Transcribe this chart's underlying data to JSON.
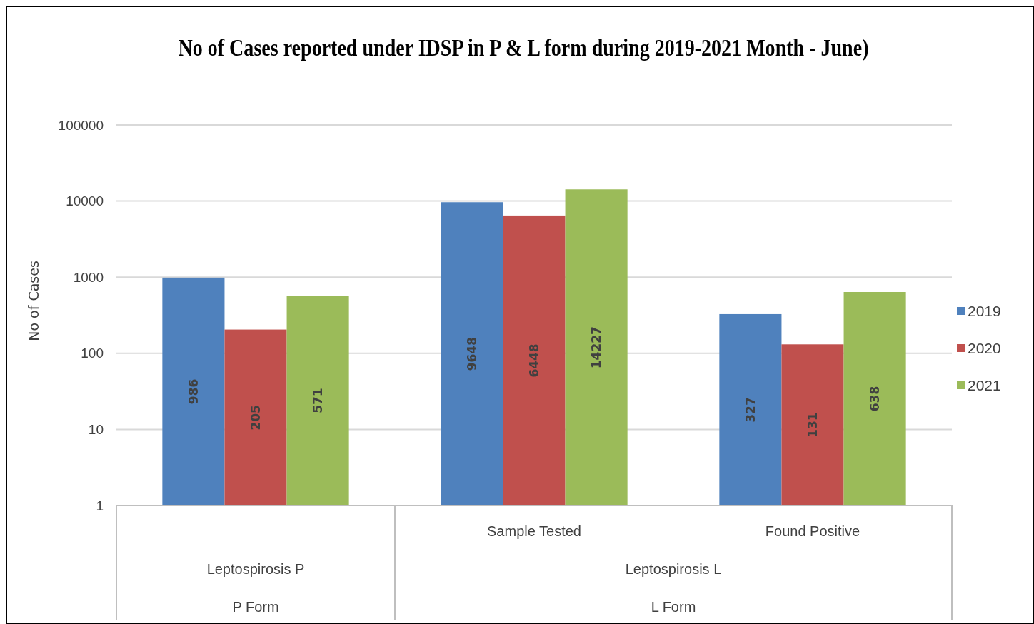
{
  "chart_data": {
    "type": "bar",
    "title": "No of Cases reported under IDSP in P & L form during 2019-2021 Month - June)",
    "ylabel": "No of Cases",
    "categories": [
      null,
      "Sample Tested",
      "Found Positive"
    ],
    "series": [
      {
        "name": "2019",
        "color": "#4f81bd",
        "values": [
          986,
          9648,
          327
        ]
      },
      {
        "name": "2020",
        "color": "#c0504d",
        "values": [
          205,
          6448,
          131
        ]
      },
      {
        "name": "2021",
        "color": "#9bbb59",
        "values": [
          571,
          14227,
          638
        ]
      }
    ],
    "annotations": [
      "Leptospirosis P",
      "Leptospirosis L",
      "P Form",
      "L Form"
    ],
    "log": true,
    "ylim": [
      1,
      100000
    ],
    "yticks": [
      1,
      10,
      100,
      1000,
      10000,
      100000
    ],
    "grid": "y",
    "legend": "right",
    "data_labels": true
  }
}
